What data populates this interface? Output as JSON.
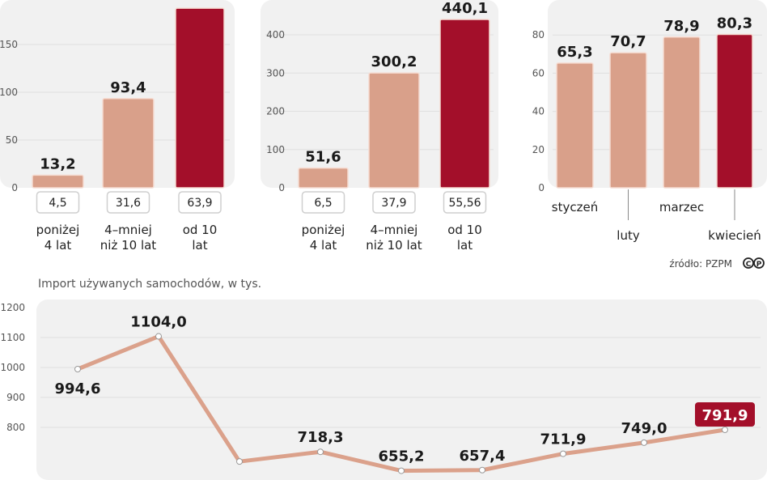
{
  "colors": {
    "light_bar": "#d9a08a",
    "dark_bar": "#a30f2a",
    "line": "#dba18b",
    "panel": "#f1f1f1",
    "grid": "#e0e0e0"
  },
  "chart_data": [
    {
      "type": "bar",
      "categories": [
        [
          "poniżej",
          "4 lat"
        ],
        [
          "4–mniej",
          "niż 10 lat"
        ],
        [
          "od 10",
          "lat"
        ]
      ],
      "values": [
        13.2,
        93.4,
        188
      ],
      "value_labels": [
        "13,2",
        "93,4",
        ""
      ],
      "box_labels": [
        "4,5",
        "31,6",
        "63,9"
      ],
      "highlight_index": 2,
      "yticks": [
        0,
        50,
        100,
        150
      ],
      "ylim": [
        0,
        196
      ]
    },
    {
      "type": "bar",
      "categories": [
        [
          "poniżej",
          "4 lat"
        ],
        [
          "4–mniej",
          "niż 10 lat"
        ],
        [
          "od 10",
          "lat"
        ]
      ],
      "values": [
        51.6,
        300.2,
        440.1
      ],
      "value_labels": [
        "51,6",
        "300,2",
        "440,1"
      ],
      "box_labels": [
        "6,5",
        "37,9",
        "55,56"
      ],
      "highlight_index": 2,
      "yticks": [
        0,
        100,
        200,
        300,
        400
      ],
      "ylim": [
        0,
        490
      ]
    },
    {
      "type": "bar",
      "categories": [
        "styczeń",
        "luty",
        "marzec",
        "kwiecień"
      ],
      "values": [
        65.3,
        70.7,
        78.9,
        80.3
      ],
      "value_labels": [
        "65,3",
        "70,7",
        "78,9",
        "80,3"
      ],
      "highlight_index": 3,
      "yticks": [
        0,
        20,
        40,
        60,
        80
      ],
      "ylim": [
        0,
        98
      ]
    },
    {
      "type": "line",
      "title": "Import używanych samochodów, w tys.",
      "values": [
        994.6,
        1104.0,
        686,
        718.3,
        655.2,
        657.4,
        711.9,
        749.0,
        791.9
      ],
      "value_labels": [
        "994,6",
        "1104,0",
        "",
        "718,3",
        "655,2",
        "657,4",
        "711,9",
        "749,0",
        "791,9"
      ],
      "highlight_index": 8,
      "yticks": [
        800,
        900,
        1000,
        1100,
        1200
      ],
      "ylim": [
        600,
        1200
      ]
    }
  ],
  "source": "źródło: PZPM",
  "license_icons": [
    "C",
    "P"
  ]
}
